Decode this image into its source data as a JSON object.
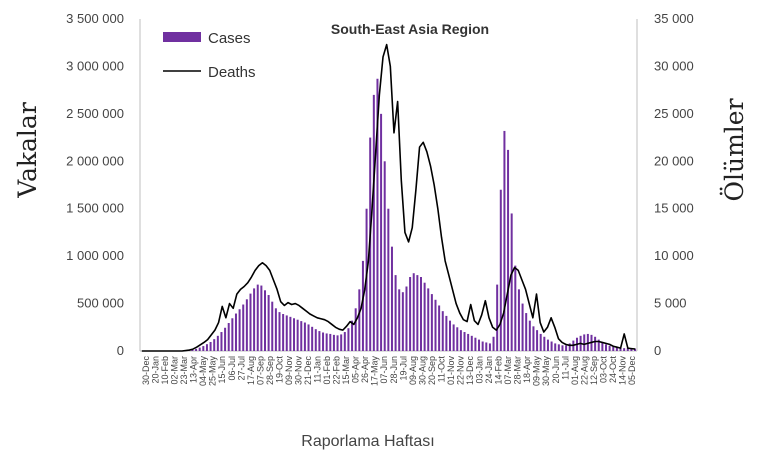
{
  "chart_data": {
    "type": "bar",
    "title": "South-East Asia Region",
    "xlabel": "Raporlama Haftası",
    "ylabel": "Vakalar",
    "y2label": "Ölümler",
    "ylim": [
      0,
      3500000
    ],
    "y2lim": [
      0,
      35000
    ],
    "yticks": [
      "0",
      "500 000",
      "1 000 000",
      "1 500 000",
      "2 000 000",
      "2 500 000",
      "3 000 000",
      "3 500 000"
    ],
    "y2ticks": [
      "0",
      "5 000",
      "10 000",
      "15 000",
      "20 000",
      "25 000",
      "30 000",
      "35 000"
    ],
    "x_tick_labels": [
      "30-Dec",
      "20-Jan",
      "10-Feb",
      "02-Mar",
      "23-Mar",
      "13-Apr",
      "04-May",
      "25-May",
      "15-Jun",
      "06-Jul",
      "27-Jul",
      "17-Aug",
      "07-Sep",
      "28-Sep",
      "19-Oct",
      "09-Nov",
      "30-Nov",
      "21-Dec",
      "11-Jan",
      "01-Feb",
      "22-Feb",
      "15-Mar",
      "05-Apr",
      "26-Apr",
      "17-May",
      "07-Jun",
      "28-Jun",
      "19-Jul",
      "09-Aug",
      "30-Aug",
      "20-Sep",
      "11-Oct",
      "01-Nov",
      "22-Nov",
      "13-Dec",
      "03-Jan",
      "24-Jan",
      "14-Feb",
      "07-Mar",
      "28-Mar",
      "18-Apr",
      "09-May",
      "30-May",
      "20-Jun",
      "11-Jul",
      "01-Aug",
      "22-Aug",
      "12-Sep",
      "03-Oct",
      "24-Oct",
      "14-Nov",
      "05-Dec"
    ],
    "grid": false,
    "legend_position": "top-left",
    "series": [
      {
        "name": "Cases",
        "type": "bar",
        "axis": "left",
        "color": "#7030a0",
        "values": [
          0,
          0,
          0,
          0,
          0,
          0,
          0,
          0,
          0,
          0,
          0,
          0,
          0,
          5000,
          12000,
          22000,
          36000,
          52000,
          72000,
          95000,
          125000,
          160000,
          200000,
          245000,
          295000,
          345000,
          395000,
          440000,
          490000,
          545000,
          605000,
          660000,
          700000,
          690000,
          640000,
          590000,
          520000,
          450000,
          410000,
          390000,
          375000,
          360000,
          345000,
          330000,
          315000,
          300000,
          280000,
          255000,
          230000,
          210000,
          195000,
          185000,
          180000,
          170000,
          165000,
          175000,
          200000,
          240000,
          320000,
          450000,
          650000,
          950000,
          1500000,
          2250000,
          2700000,
          2870000,
          2500000,
          2000000,
          1500000,
          1100000,
          800000,
          650000,
          620000,
          680000,
          780000,
          820000,
          800000,
          780000,
          720000,
          660000,
          600000,
          540000,
          480000,
          420000,
          370000,
          320000,
          280000,
          250000,
          220000,
          200000,
          180000,
          160000,
          140000,
          120000,
          100000,
          90000,
          80000,
          150000,
          700000,
          1700000,
          2320000,
          2120000,
          1450000,
          900000,
          650000,
          500000,
          400000,
          320000,
          260000,
          220000,
          180000,
          150000,
          120000,
          100000,
          80000,
          70000,
          60000,
          60000,
          80000,
          110000,
          140000,
          160000,
          175000,
          180000,
          170000,
          150000,
          120000,
          90000,
          70000,
          55000,
          45000,
          40000,
          35000,
          30000,
          30000,
          28000,
          25000
        ]
      },
      {
        "name": "Deaths",
        "type": "line",
        "axis": "right",
        "color": "#000000",
        "values": [
          0,
          0,
          0,
          0,
          0,
          0,
          0,
          0,
          0,
          0,
          0,
          0,
          50,
          100,
          200,
          400,
          650,
          900,
          1200,
          1700,
          2200,
          3000,
          4700,
          3500,
          5000,
          4500,
          6000,
          6500,
          6800,
          7200,
          7800,
          8500,
          9000,
          9300,
          9000,
          8500,
          7500,
          6500,
          5200,
          4800,
          5100,
          4900,
          5000,
          4800,
          4500,
          4200,
          3900,
          3700,
          3500,
          3400,
          3300,
          3100,
          2800,
          2500,
          2300,
          2200,
          2600,
          3100,
          2800,
          3500,
          4500,
          6500,
          9500,
          15000,
          21000,
          27000,
          31000,
          32300,
          30000,
          23000,
          26300,
          18000,
          12500,
          11500,
          13000,
          17000,
          21500,
          22000,
          21000,
          19500,
          17500,
          15000,
          12000,
          9500,
          8000,
          6500,
          5000,
          4000,
          3300,
          3100,
          4900,
          3200,
          2800,
          3800,
          5300,
          3500,
          2500,
          2200,
          2800,
          4000,
          6000,
          8000,
          8800,
          8500,
          7500,
          6500,
          5000,
          3500,
          6000,
          3000,
          2000,
          2500,
          3500,
          2500,
          1300,
          900,
          700,
          600,
          600,
          700,
          800,
          700,
          800,
          900,
          1000,
          1000,
          900,
          800,
          700,
          500,
          400,
          300,
          1800,
          300,
          250,
          200
        ]
      }
    ]
  }
}
